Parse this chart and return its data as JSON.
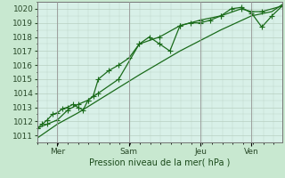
{
  "background_color": "#c8e8d0",
  "plot_bg_color": "#d8f0e8",
  "grid_color": "#b0c8b8",
  "line_color": "#1a6b1a",
  "border_color": "#888888",
  "ylabel": "Pression niveau de la mer( hPa )",
  "ylim": [
    1010.5,
    1020.5
  ],
  "yticks": [
    1011,
    1012,
    1013,
    1014,
    1015,
    1016,
    1017,
    1018,
    1019,
    1020
  ],
  "day_labels": [
    "Mer",
    "Sam",
    "Jeu",
    "Ven"
  ],
  "day_positions": [
    0.083,
    0.375,
    0.667,
    0.875
  ],
  "xlim": [
    0.0,
    1.0
  ],
  "series1_x": [
    0.0,
    0.021,
    0.042,
    0.063,
    0.083,
    0.104,
    0.125,
    0.146,
    0.167,
    0.188,
    0.208,
    0.229,
    0.25,
    0.292,
    0.333,
    0.375,
    0.417,
    0.458,
    0.5,
    0.542,
    0.583,
    0.625,
    0.667,
    0.708,
    0.75,
    0.792,
    0.833,
    0.875,
    0.917,
    0.958,
    1.0
  ],
  "series1_y": [
    1011.5,
    1011.8,
    1012.1,
    1012.5,
    1012.6,
    1012.9,
    1013.0,
    1013.2,
    1013.0,
    1012.8,
    1013.5,
    1013.8,
    1015.0,
    1015.6,
    1016.0,
    1016.5,
    1017.5,
    1018.0,
    1017.5,
    1017.0,
    1018.8,
    1019.0,
    1019.0,
    1019.2,
    1019.5,
    1020.0,
    1020.1,
    1019.7,
    1018.7,
    1019.5,
    1020.2
  ],
  "series2_x": [
    0.0,
    0.042,
    0.083,
    0.125,
    0.167,
    0.208,
    0.25,
    0.333,
    0.417,
    0.5,
    0.583,
    0.667,
    0.75,
    0.833,
    0.875,
    0.917,
    1.0
  ],
  "series2_y": [
    1011.5,
    1011.8,
    1012.1,
    1012.8,
    1013.2,
    1013.5,
    1014.0,
    1015.0,
    1017.5,
    1018.0,
    1018.8,
    1019.2,
    1019.5,
    1020.0,
    1019.8,
    1019.8,
    1020.2
  ],
  "series3_x": [
    0.0,
    0.083,
    0.167,
    0.25,
    0.417,
    0.583,
    0.75,
    0.875,
    0.958,
    1.0
  ],
  "series3_y": [
    1010.8,
    1011.8,
    1012.6,
    1013.5,
    1015.3,
    1017.0,
    1018.5,
    1019.5,
    1019.8,
    1020.3
  ],
  "vlines_x": [
    0.083,
    0.375,
    0.667,
    0.875
  ],
  "marker_size": 2.5,
  "line_width": 0.9,
  "fontsize_ylabel": 7,
  "fontsize_ticks": 6.5,
  "fontsize_day": 6.5
}
